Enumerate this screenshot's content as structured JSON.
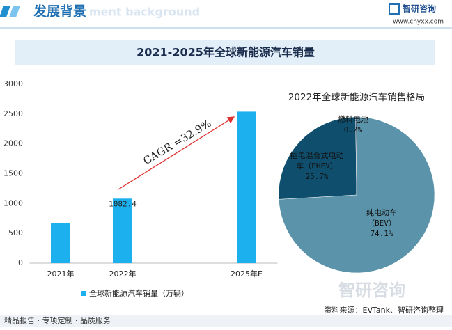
{
  "header": {
    "title": "发展背景",
    "faded": "ment background",
    "brand": "智研咨询",
    "url": "www.chyxx.com"
  },
  "banner_title": "2021-2025年全球新能源汽车销量",
  "chart_data": [
    {
      "type": "bar",
      "categories": [
        "2021年",
        "2022年",
        null,
        "2025年E"
      ],
      "series": [
        {
          "name": "全球新能源汽车销量（万辆）",
          "color": "#1cb0ee",
          "values": [
            670,
            1082.4,
            null,
            2540
          ],
          "value_labels": [
            null,
            "1082.4",
            null,
            null
          ]
        }
      ],
      "ylim": [
        0,
        3000
      ],
      "yticks": [
        0,
        500,
        1000,
        1500,
        2000,
        2500,
        3000
      ],
      "annotation": "CAGR =32.9%",
      "grid": false,
      "legend": "bottom"
    },
    {
      "type": "pie",
      "title": "2022年全球新能源汽车销售格局",
      "categories": [
        "纯电动车（BEV）",
        "插电混合式电动车（PHEV）",
        "燃料电池"
      ],
      "values": [
        74.1,
        25.7,
        0.2
      ],
      "value_labels": [
        "74.1%",
        "25.7%",
        "0.2%"
      ],
      "colors": [
        "#5b94aa",
        "#0f4e6c",
        "#1a3b5c"
      ]
    }
  ],
  "footer": {
    "left": "精品报告 · 专项定制 · 品质服务",
    "source": "资料来源：EVTank、智研咨询整理",
    "watermark": "智研咨询"
  }
}
